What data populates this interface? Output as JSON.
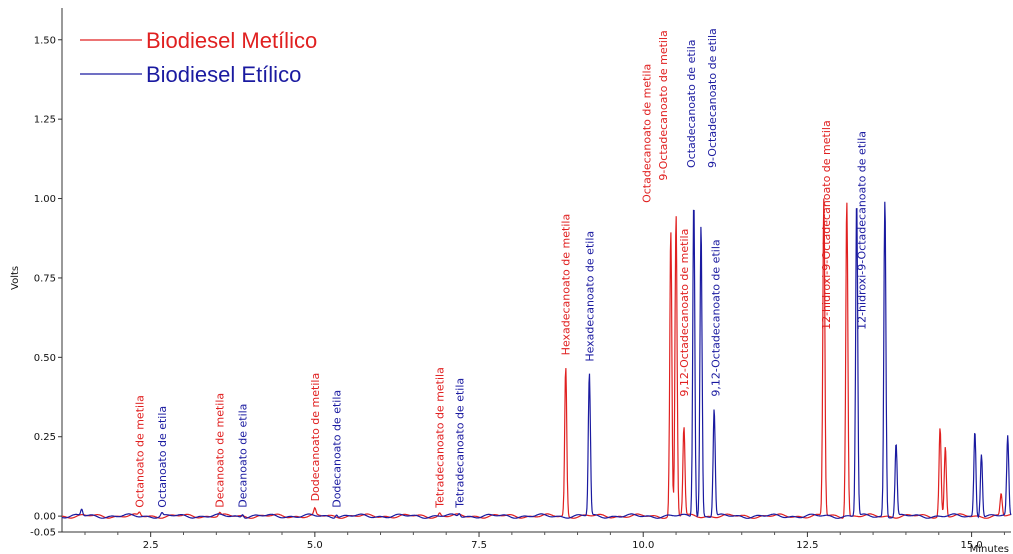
{
  "chart_data": {
    "type": "line",
    "title": "",
    "xlabel": "Minutes",
    "ylabel": "Volts",
    "xlim": [
      1.15,
      15.6
    ],
    "ylim": [
      -0.05,
      1.6
    ],
    "x_ticks": [
      "2.5",
      "5.0",
      "7.5",
      "10.0",
      "12.5",
      "15.0"
    ],
    "y_ticks": [
      "-0.05",
      "0.00",
      "0.25",
      "0.50",
      "0.75",
      "1.00",
      "1.25",
      "1.50"
    ],
    "grid": false,
    "legend_position": "top-left",
    "series": [
      {
        "name": "Biodiesel Metílico",
        "color": "#e02020",
        "peaks": [
          {
            "x": 2.33,
            "y": 0.01
          },
          {
            "x": 3.55,
            "y": 0.01
          },
          {
            "x": 5.0,
            "y": 0.02
          },
          {
            "x": 6.9,
            "y": 0.01
          },
          {
            "x": 8.82,
            "y": 0.47
          },
          {
            "x": 10.42,
            "y": 0.9
          },
          {
            "x": 10.5,
            "y": 0.95
          },
          {
            "x": 10.62,
            "y": 0.28
          },
          {
            "x": 12.75,
            "y": 1.0
          },
          {
            "x": 13.1,
            "y": 1.0
          },
          {
            "x": 14.52,
            "y": 0.28
          },
          {
            "x": 14.6,
            "y": 0.22
          },
          {
            "x": 15.45,
            "y": 0.07
          }
        ]
      },
      {
        "name": "Biodiesel Etílico",
        "color": "#1a1aa0",
        "peaks": [
          {
            "x": 1.45,
            "y": 0.02
          },
          {
            "x": 2.67,
            "y": 0.01
          },
          {
            "x": 3.9,
            "y": 0.01
          },
          {
            "x": 5.33,
            "y": 0.01
          },
          {
            "x": 7.2,
            "y": 0.01
          },
          {
            "x": 9.18,
            "y": 0.45
          },
          {
            "x": 10.77,
            "y": 1.0
          },
          {
            "x": 10.88,
            "y": 0.92
          },
          {
            "x": 11.08,
            "y": 0.34
          },
          {
            "x": 13.25,
            "y": 1.0
          },
          {
            "x": 13.68,
            "y": 1.0
          },
          {
            "x": 13.85,
            "y": 0.23
          },
          {
            "x": 15.05,
            "y": 0.27
          },
          {
            "x": 15.15,
            "y": 0.2
          },
          {
            "x": 15.55,
            "y": 0.25
          }
        ]
      }
    ],
    "annotations": [
      {
        "text": "Octanoato de metila",
        "x": 2.33,
        "y": 0.02,
        "series": 0
      },
      {
        "text": "Octanoato de etila",
        "x": 2.67,
        "y": 0.02,
        "series": 1
      },
      {
        "text": "Decanoato de metila",
        "x": 3.55,
        "y": 0.02,
        "series": 0
      },
      {
        "text": "Decanoato de etila",
        "x": 3.9,
        "y": 0.02,
        "series": 1
      },
      {
        "text": "Dodecanoato de metila",
        "x": 5.0,
        "y": 0.04,
        "series": 0
      },
      {
        "text": "Dodecanoato de etila",
        "x": 5.33,
        "y": 0.02,
        "series": 1
      },
      {
        "text": "Tetradecanoato de metila",
        "x": 6.9,
        "y": 0.02,
        "series": 0
      },
      {
        "text": "Tetradecanoato de etila",
        "x": 7.2,
        "y": 0.02,
        "series": 1
      },
      {
        "text": "Hexadecanoato de metila",
        "x": 8.82,
        "y": 0.5,
        "series": 0
      },
      {
        "text": "Hexadecanoato de etila",
        "x": 9.18,
        "y": 0.48,
        "series": 1
      },
      {
        "text": "Octadecanoato de metila",
        "x": 10.05,
        "y": 0.98,
        "series": 0
      },
      {
        "text": "9-Octadecanoato de metila",
        "x": 10.3,
        "y": 1.05,
        "series": 0
      },
      {
        "text": "9,12-Octadecanoato de metila",
        "x": 10.62,
        "y": 0.37,
        "series": 0
      },
      {
        "text": "Octadecanoato de etila",
        "x": 10.73,
        "y": 1.09,
        "series": 1
      },
      {
        "text": "9-Octadecanoato de etila",
        "x": 11.05,
        "y": 1.09,
        "series": 1
      },
      {
        "text": "9,12-Octadecanoato de etila",
        "x": 11.1,
        "y": 0.37,
        "series": 1
      },
      {
        "text": "12-hidroxi-9-Octadecanoato de metila",
        "x": 12.78,
        "y": 0.58,
        "series": 0
      },
      {
        "text": "12-hidroxi-9-Octadecanoato de etila",
        "x": 13.32,
        "y": 0.58,
        "series": 1
      }
    ]
  }
}
